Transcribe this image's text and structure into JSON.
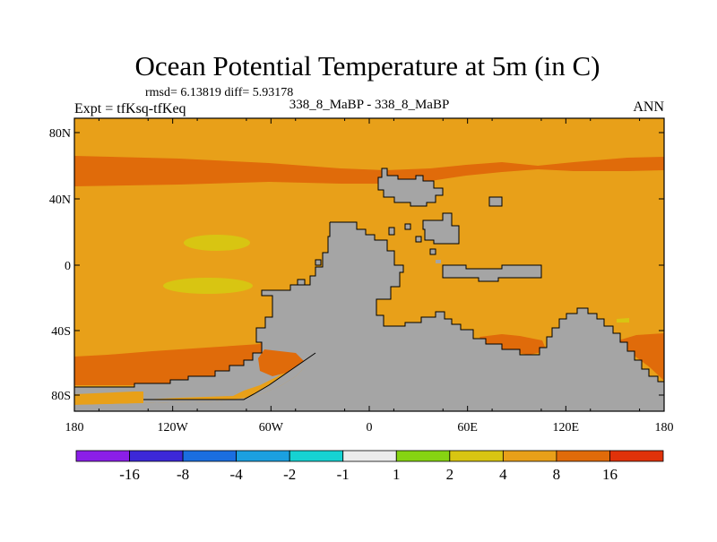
{
  "title": "Ocean Potential Temperature at 5m (in C)",
  "stats": "rmsd= 6.13819 diff= 5.93178",
  "experiment": "Expt = tfKsq-tfKeq",
  "subtitle": "338_8_MaBP - 338_8_MaBP",
  "season": "ANN",
  "map": {
    "lat_ticks": [
      "80N",
      "40N",
      "0",
      "40S",
      "80S"
    ],
    "lon_ticks": [
      "180",
      "120W",
      "60W",
      "0",
      "60E",
      "120E",
      "180"
    ]
  },
  "colors": {
    "background_field": "#e8a019",
    "warm_band": "#e06b0a",
    "land": "#a5a5a5",
    "cool_patch": "#d8c512",
    "coast": "#000000",
    "hot": "#e0320a"
  },
  "colorbar": {
    "labels": [
      "-16",
      "-8",
      "-4",
      "-2",
      "-1",
      "1",
      "2",
      "4",
      "8",
      "16"
    ],
    "colors": [
      "#8b1ee8",
      "#3c28d8",
      "#1a6ee0",
      "#1ba0e0",
      "#16d2d2",
      "#ececec",
      "#86d412",
      "#d8c512",
      "#e8a019",
      "#e06b0a",
      "#e0320a"
    ]
  }
}
